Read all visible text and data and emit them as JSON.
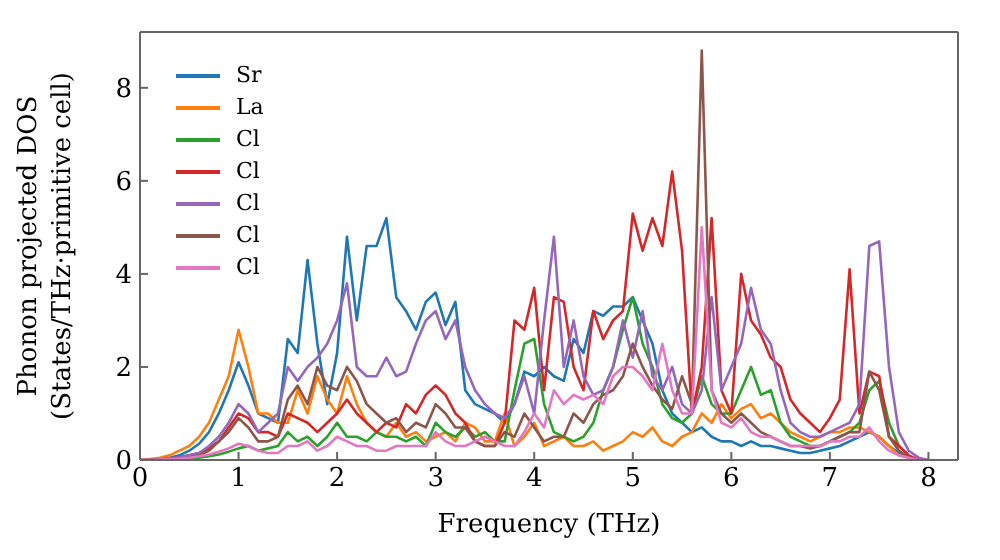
{
  "chart_data": {
    "type": "line",
    "xlabel": "Frequency (THz)",
    "ylabel": "Phonon projected DOS\n(States/THz·primitive cell)",
    "x": [
      0,
      0.1,
      0.2,
      0.3,
      0.4,
      0.5,
      0.6,
      0.7,
      0.8,
      0.9,
      1,
      1.1,
      1.2,
      1.3,
      1.4,
      1.5,
      1.6,
      1.7,
      1.8,
      1.9,
      2,
      2.1,
      2.2,
      2.3,
      2.4,
      2.5,
      2.6,
      2.7,
      2.8,
      2.9,
      3,
      3.1,
      3.2,
      3.3,
      3.4,
      3.5,
      3.6,
      3.7,
      3.8,
      3.9,
      4,
      4.1,
      4.2,
      4.3,
      4.4,
      4.5,
      4.6,
      4.7,
      4.8,
      4.9,
      5,
      5.1,
      5.2,
      5.3,
      5.4,
      5.5,
      5.6,
      5.7,
      5.8,
      5.9,
      6,
      6.1,
      6.2,
      6.3,
      6.4,
      6.5,
      6.6,
      6.7,
      6.8,
      6.9,
      7,
      7.1,
      7.2,
      7.3,
      7.4,
      7.5,
      7.6,
      7.7,
      7.8,
      7.9,
      8
    ],
    "series": [
      {
        "name": "Sr",
        "color": "#1f77b4",
        "values": [
          null,
          null,
          0.02,
          0.05,
          0.1,
          0.2,
          0.35,
          0.6,
          1,
          1.5,
          2.1,
          1.6,
          1,
          0.9,
          0.8,
          2.6,
          2.3,
          4.3,
          2.5,
          1.2,
          2.3,
          4.8,
          3,
          4.6,
          4.6,
          5.2,
          3.5,
          3.2,
          2.8,
          3.4,
          3.6,
          2.9,
          3.4,
          1.5,
          1.2,
          1.1,
          1,
          0.8,
          1.2,
          1.9,
          1.8,
          2,
          1.8,
          1.7,
          2.6,
          2.3,
          3.2,
          3.1,
          3.3,
          3.3,
          3.5,
          3,
          2.5,
          1.5,
          1,
          0.8,
          0.6,
          0.7,
          0.5,
          0.4,
          0.4,
          0.3,
          0.4,
          0.3,
          0.3,
          0.25,
          0.2,
          0.15,
          0.15,
          0.2,
          0.25,
          0.3,
          0.4,
          0.5,
          0.6,
          0.5,
          0.3,
          0.15,
          0.05,
          null,
          null
        ]
      },
      {
        "name": "La",
        "color": "#ff7f0e",
        "values": [
          0,
          0.02,
          0.05,
          0.1,
          0.2,
          0.3,
          0.5,
          0.8,
          1.3,
          1.8,
          2.8,
          2,
          1,
          1,
          0.8,
          0.8,
          1.5,
          1,
          1.8,
          1.3,
          1,
          1.8,
          1.2,
          0.8,
          0.6,
          0.5,
          0.8,
          0.5,
          0.6,
          0.4,
          0.5,
          0.6,
          0.4,
          0.8,
          0.7,
          0.4,
          0.4,
          1,
          0.3,
          0.5,
          0.8,
          0.3,
          0.4,
          0.5,
          0.3,
          0.3,
          0.4,
          0.2,
          0.3,
          0.4,
          0.6,
          0.5,
          0.7,
          0.4,
          0.3,
          0.5,
          0.6,
          1,
          0.8,
          1.2,
          0.9,
          1.1,
          1.2,
          0.9,
          1,
          0.8,
          0.6,
          0.5,
          0.4,
          0.5,
          0.6,
          0.6,
          0.7,
          0.7,
          0.6,
          0.5,
          0.3,
          0.1,
          0.05,
          null,
          null
        ]
      },
      {
        "name": "Cl",
        "color": "#2ca02c",
        "values": [
          null,
          null,
          null,
          null,
          null,
          0.03,
          0.05,
          0.08,
          0.12,
          0.18,
          0.25,
          0.3,
          0.2,
          0.25,
          0.3,
          0.6,
          0.4,
          0.5,
          0.3,
          0.5,
          0.8,
          0.5,
          0.5,
          0.4,
          0.6,
          0.5,
          0.5,
          0.4,
          0.5,
          0.3,
          0.8,
          0.6,
          0.5,
          0.7,
          0.5,
          0.6,
          0.4,
          0.4,
          1.5,
          2.5,
          2.6,
          1.2,
          0.6,
          0.5,
          0.4,
          0.5,
          0.8,
          1.5,
          2,
          2.8,
          3.5,
          2.5,
          2,
          1.2,
          0.9,
          0.8,
          1,
          1.8,
          1.2,
          1,
          1,
          1.5,
          2,
          1.4,
          1.5,
          0.8,
          0.5,
          0.4,
          0.3,
          0.3,
          0.4,
          0.5,
          0.6,
          0.8,
          1.5,
          1.7,
          0.8,
          0.3,
          0.1,
          null,
          null
        ]
      },
      {
        "name": "Cl",
        "color": "#d62728",
        "values": [
          0,
          0,
          0.01,
          0.03,
          0.06,
          0.1,
          0.15,
          0.25,
          0.4,
          0.7,
          1,
          0.9,
          0.6,
          0.6,
          0.5,
          1,
          0.9,
          0.8,
          0.6,
          0.8,
          1,
          1.3,
          1,
          0.8,
          0.6,
          0.8,
          0.7,
          1.2,
          1,
          1.4,
          1.6,
          1.4,
          1,
          0.8,
          0.4,
          0.3,
          0.3,
          0.8,
          3,
          2.8,
          3.7,
          1.5,
          3.5,
          3.4,
          2,
          1.5,
          3.2,
          2.6,
          3,
          3.2,
          5.3,
          4.5,
          5.2,
          4.6,
          6.2,
          4.5,
          1,
          2,
          5.2,
          1.5,
          1,
          4,
          3,
          2.7,
          2.2,
          2,
          1.3,
          1,
          0.8,
          0.6,
          0.9,
          1.3,
          4.1,
          1,
          1.9,
          1.8,
          0.5,
          0.3,
          0.1,
          0,
          0
        ]
      },
      {
        "name": "Cl",
        "color": "#9467bd",
        "values": [
          0,
          0,
          0.01,
          0.03,
          0.06,
          0.1,
          0.15,
          0.3,
          0.5,
          0.8,
          1.2,
          1,
          0.6,
          0.8,
          1,
          2,
          1.7,
          2,
          2.2,
          2.5,
          3,
          3.8,
          2,
          1.8,
          1.8,
          2.2,
          1.8,
          1.9,
          2.5,
          3,
          3.2,
          2.6,
          3,
          2,
          1.5,
          1.2,
          1,
          0.9,
          1.2,
          1.8,
          1,
          3,
          4.8,
          2,
          3,
          1.8,
          1.4,
          1.5,
          2,
          3,
          2.2,
          3.2,
          1.8,
          1.5,
          2,
          1.2,
          1,
          1.5,
          3.5,
          1.5,
          2,
          2.5,
          3.7,
          2.8,
          2.5,
          1.5,
          0.8,
          0.6,
          0.5,
          0.5,
          0.6,
          0.7,
          0.8,
          1.2,
          4.6,
          4.7,
          2,
          0.6,
          0.2,
          0.05,
          0
        ]
      },
      {
        "name": "Cl",
        "color": "#8c564b",
        "values": [
          0,
          0,
          0.01,
          0.02,
          0.03,
          0.05,
          0.1,
          0.2,
          0.4,
          0.6,
          0.9,
          0.7,
          0.4,
          0.4,
          0.5,
          1.3,
          1.6,
          1.2,
          2,
          1.6,
          1.5,
          2,
          1.7,
          1.2,
          1,
          0.8,
          0.9,
          0.6,
          0.8,
          0.7,
          1.2,
          1,
          0.7,
          0.7,
          0.4,
          0.3,
          0.3,
          0.6,
          0.5,
          1,
          0.7,
          0.4,
          0.5,
          0.5,
          1,
          0.8,
          1.2,
          1.4,
          1.5,
          1.8,
          2.5,
          2,
          1.6,
          1.3,
          1.1,
          1.8,
          1.2,
          8.8,
          1.5,
          1,
          0.8,
          1,
          0.8,
          0.6,
          0.5,
          0.4,
          0.3,
          0.3,
          0.25,
          0.3,
          0.4,
          0.5,
          0.6,
          0.6,
          1.9,
          1.5,
          0.5,
          0.2,
          0.05,
          0,
          0
        ]
      },
      {
        "name": "Cl",
        "color": "#e377c2",
        "values": [
          0,
          0,
          0.01,
          0.02,
          0.03,
          0.05,
          0.08,
          0.12,
          0.18,
          0.25,
          0.35,
          0.3,
          0.2,
          0.15,
          0.15,
          0.3,
          0.3,
          0.4,
          0.2,
          0.3,
          0.5,
          0.4,
          0.3,
          0.3,
          0.2,
          0.2,
          0.3,
          0.3,
          0.3,
          0.3,
          0.6,
          0.4,
          0.3,
          0.3,
          0.4,
          0.5,
          0.4,
          0.3,
          0.3,
          0.6,
          1,
          0.7,
          1.5,
          1.2,
          1.4,
          1.3,
          1.4,
          1.2,
          1.8,
          2,
          2,
          1.8,
          1.5,
          2.5,
          1.5,
          1,
          1,
          5,
          1.5,
          0.8,
          0.7,
          0.9,
          0.6,
          0.5,
          0.5,
          0.4,
          0.3,
          0.3,
          0.3,
          0.3,
          0.4,
          0.4,
          0.5,
          0.5,
          0.7,
          0.4,
          0.2,
          0.1,
          0.05,
          0,
          0
        ]
      }
    ],
    "xlim": [
      0,
      8.3
    ],
    "xticks": [
      0,
      1,
      2,
      3,
      4,
      5,
      6,
      7,
      8
    ],
    "ylim": [
      0,
      9.2
    ],
    "yticks": [
      0,
      2,
      4,
      6,
      8
    ],
    "legend": "top left",
    "grid": false,
    "marker": "none",
    "line_style": "solid"
  }
}
